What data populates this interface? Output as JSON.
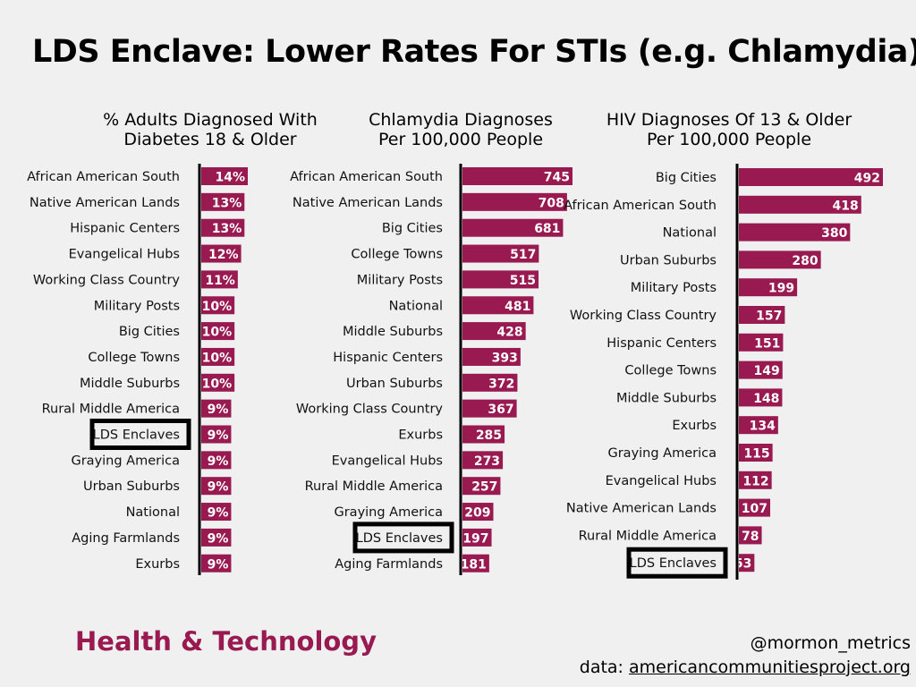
{
  "title": "LDS Enclave: Lower Rates For STIs (e.g. Chlamydia)",
  "footer": {
    "brand": "Health & Technology",
    "handle": "@mormon_metrics",
    "source_prefix": "data: ",
    "source_link": "americancommunitiesproject.org"
  },
  "colors": {
    "bar": "#981a50",
    "background": "#f0f0f0",
    "highlight_box": "#000000"
  },
  "chart_data": [
    {
      "type": "bar",
      "orientation": "horizontal",
      "title": [
        "% Adults Diagnosed With",
        "Diabetes 18 & Older"
      ],
      "highlight": "LDS Enclaves",
      "suffix": "%",
      "categories": [
        "African American South",
        "Native American Lands",
        "Hispanic Centers",
        "Evangelical Hubs",
        "Working Class Country",
        "Military Posts",
        "Big Cities",
        "College Towns",
        "Middle Suburbs",
        "Rural Middle America",
        "LDS Enclaves",
        "Graying America",
        "Urban Suburbs",
        "National",
        "Aging Farmlands",
        "Exurbs"
      ],
      "values": [
        14,
        13,
        13,
        12,
        11,
        10,
        10,
        10,
        10,
        9,
        9,
        9,
        9,
        9,
        9,
        9
      ]
    },
    {
      "type": "bar",
      "orientation": "horizontal",
      "title": [
        "Chlamydia Diagnoses",
        "Per 100,000 People"
      ],
      "highlight": "LDS Enclaves",
      "suffix": "",
      "categories": [
        "African American South",
        "Native American Lands",
        "Big Cities",
        "College Towns",
        "Military Posts",
        "National",
        "Middle Suburbs",
        "Hispanic Centers",
        "Urban Suburbs",
        "Working Class Country",
        "Exurbs",
        "Evangelical Hubs",
        "Rural Middle America",
        "Graying America",
        "LDS Enclaves",
        "Aging Farmlands"
      ],
      "values": [
        745,
        708,
        681,
        517,
        515,
        481,
        428,
        393,
        372,
        367,
        285,
        273,
        257,
        209,
        197,
        181
      ]
    },
    {
      "type": "bar",
      "orientation": "horizontal",
      "title": [
        "HIV Diagnoses Of 13 & Older",
        "Per 100,000 People"
      ],
      "highlight": "LDS Enclaves",
      "suffix": "",
      "categories": [
        "Big Cities",
        "African American South",
        "National",
        "Urban Suburbs",
        "Military Posts",
        "Working Class Country",
        "Hispanic Centers",
        "College Towns",
        "Middle Suburbs",
        "Exurbs",
        "Graying America",
        "Evangelical Hubs",
        "Native American Lands",
        "Rural Middle America",
        "LDS Enclaves"
      ],
      "values": [
        492,
        418,
        380,
        280,
        199,
        157,
        151,
        149,
        148,
        134,
        115,
        112,
        107,
        78,
        53
      ]
    }
  ]
}
